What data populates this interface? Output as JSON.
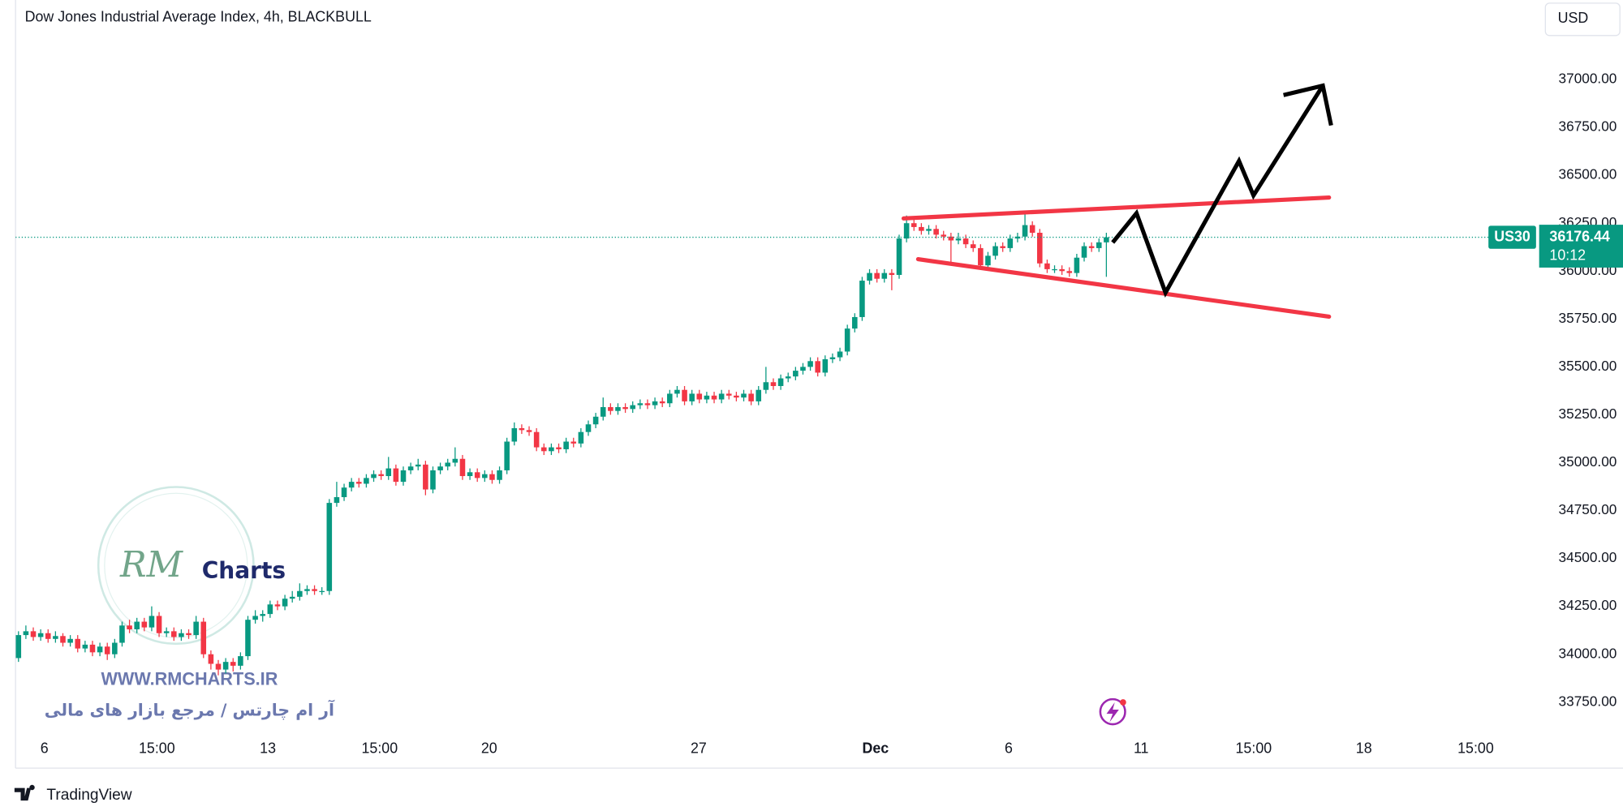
{
  "chart_data": {
    "type": "candlestick",
    "title": "Dow Jones Industrial Average Index, 4h, BLACKBULL",
    "currency": "USD",
    "symbol": "US30",
    "last_price": 36176.44,
    "countdown": "10:12",
    "up_color": "#089981",
    "down_color": "#f23645",
    "grid": false,
    "xlim": [
      -0.4,
      205.2
    ],
    "xticks": [
      {
        "value": 3.5,
        "label": "6"
      },
      {
        "value": 18.7,
        "label": "15:00"
      },
      {
        "value": 33.7,
        "label": "13"
      },
      {
        "value": 48.8,
        "label": "15:00"
      },
      {
        "value": 63.6,
        "label": "20"
      },
      {
        "value": 91.9,
        "label": "27"
      },
      {
        "value": 115.8,
        "label": "Dec"
      },
      {
        "value": 133.8,
        "label": "6"
      },
      {
        "value": 151.7,
        "label": "11"
      },
      {
        "value": 166.9,
        "label": "15:00"
      },
      {
        "value": 181.8,
        "label": "18"
      },
      {
        "value": 196.9,
        "label": "15:00"
      }
    ],
    "ylim": [
      33580,
      37415
    ],
    "yticks": [
      {
        "value": 33750,
        "label": "33750.00"
      },
      {
        "value": 34000,
        "label": "34000.00"
      },
      {
        "value": 34250,
        "label": "34250.00"
      },
      {
        "value": 34500,
        "label": "34500.00"
      },
      {
        "value": 34750,
        "label": "34750.00"
      },
      {
        "value": 35000,
        "label": "35000.00"
      },
      {
        "value": 35250,
        "label": "35250.00"
      },
      {
        "value": 35500,
        "label": "35500.00"
      },
      {
        "value": 35750,
        "label": "35750.00"
      },
      {
        "value": 36000,
        "label": "36000.00"
      },
      {
        "value": 36250,
        "label": "36250.00"
      },
      {
        "value": 36500,
        "label": "36500.00"
      },
      {
        "value": 36750,
        "label": "36750.00"
      },
      {
        "value": 37000,
        "label": "37000.00"
      }
    ],
    "ohlc": [
      [
        33980,
        34120,
        33960,
        34100
      ],
      [
        34100,
        34150,
        34080,
        34120
      ],
      [
        34120,
        34140,
        34070,
        34090
      ],
      [
        34090,
        34130,
        34070,
        34110
      ],
      [
        34110,
        34130,
        34060,
        34080
      ],
      [
        34080,
        34120,
        34060,
        34095
      ],
      [
        34095,
        34110,
        34040,
        34060
      ],
      [
        34060,
        34100,
        34040,
        34080
      ],
      [
        34080,
        34100,
        34010,
        34030
      ],
      [
        34030,
        34070,
        34010,
        34050
      ],
      [
        34050,
        34070,
        33990,
        34010
      ],
      [
        34010,
        34060,
        33990,
        34040
      ],
      [
        34040,
        34060,
        33970,
        34000
      ],
      [
        34000,
        34080,
        33980,
        34060
      ],
      [
        34060,
        34170,
        34040,
        34150
      ],
      [
        34150,
        34180,
        34110,
        34130
      ],
      [
        34130,
        34190,
        34110,
        34170
      ],
      [
        34170,
        34190,
        34120,
        34140
      ],
      [
        34140,
        34250,
        34120,
        34200
      ],
      [
        34200,
        34220,
        34090,
        34110
      ],
      [
        34110,
        34140,
        34090,
        34120
      ],
      [
        34120,
        34140,
        34070,
        34090
      ],
      [
        34090,
        34130,
        34070,
        34110
      ],
      [
        34110,
        34130,
        34080,
        34100
      ],
      [
        34100,
        34200,
        34080,
        34170
      ],
      [
        34170,
        34190,
        33980,
        34000
      ],
      [
        34000,
        34020,
        33920,
        33950
      ],
      [
        33950,
        33970,
        33890,
        33920
      ],
      [
        33920,
        33980,
        33900,
        33960
      ],
      [
        33960,
        33980,
        33910,
        33940
      ],
      [
        33940,
        34010,
        33920,
        33990
      ],
      [
        33990,
        34200,
        33970,
        34180
      ],
      [
        34180,
        34230,
        34160,
        34200
      ],
      [
        34200,
        34230,
        34170,
        34210
      ],
      [
        34210,
        34280,
        34190,
        34260
      ],
      [
        34260,
        34280,
        34230,
        34250
      ],
      [
        34250,
        34310,
        34230,
        34290
      ],
      [
        34290,
        34330,
        34270,
        34300
      ],
      [
        34300,
        34370,
        34280,
        34330
      ],
      [
        34330,
        34360,
        34310,
        34340
      ],
      [
        34340,
        34360,
        34310,
        34330
      ],
      [
        34330,
        34350,
        34310,
        34330
      ],
      [
        34330,
        34810,
        34310,
        34790
      ],
      [
        34790,
        34900,
        34770,
        34820
      ],
      [
        34820,
        34890,
        34800,
        34870
      ],
      [
        34870,
        34920,
        34850,
        34900
      ],
      [
        34900,
        34920,
        34870,
        34890
      ],
      [
        34890,
        34940,
        34870,
        34920
      ],
      [
        34920,
        34960,
        34900,
        34940
      ],
      [
        34940,
        34960,
        34910,
        34930
      ],
      [
        34930,
        35030,
        34910,
        34970
      ],
      [
        34970,
        34990,
        34880,
        34900
      ],
      [
        34900,
        34980,
        34880,
        34960
      ],
      [
        34960,
        35000,
        34940,
        34980
      ],
      [
        34980,
        35020,
        34960,
        34990
      ],
      [
        34990,
        35010,
        34830,
        34860
      ],
      [
        34860,
        34980,
        34840,
        34960
      ],
      [
        34960,
        35000,
        34940,
        34980
      ],
      [
        34980,
        35020,
        34960,
        35000
      ],
      [
        35000,
        35080,
        34980,
        35020
      ],
      [
        35020,
        35040,
        34910,
        34930
      ],
      [
        34930,
        34970,
        34910,
        34950
      ],
      [
        34950,
        34970,
        34900,
        34920
      ],
      [
        34920,
        34960,
        34900,
        34940
      ],
      [
        34940,
        34960,
        34890,
        34910
      ],
      [
        34910,
        34980,
        34890,
        34960
      ],
      [
        34960,
        35130,
        34940,
        35110
      ],
      [
        35110,
        35210,
        35090,
        35180
      ],
      [
        35180,
        35200,
        35150,
        35170
      ],
      [
        35170,
        35190,
        35140,
        35160
      ],
      [
        35160,
        35180,
        35060,
        35080
      ],
      [
        35080,
        35100,
        35040,
        35060
      ],
      [
        35060,
        35100,
        35040,
        35080
      ],
      [
        35080,
        35100,
        35050,
        35070
      ],
      [
        35070,
        35130,
        35050,
        35110
      ],
      [
        35110,
        35130,
        35080,
        35100
      ],
      [
        35100,
        35180,
        35080,
        35160
      ],
      [
        35160,
        35220,
        35140,
        35200
      ],
      [
        35200,
        35260,
        35180,
        35240
      ],
      [
        35240,
        35340,
        35220,
        35290
      ],
      [
        35290,
        35310,
        35250,
        35270
      ],
      [
        35270,
        35310,
        35250,
        35290
      ],
      [
        35290,
        35310,
        35260,
        35280
      ],
      [
        35280,
        35320,
        35260,
        35300
      ],
      [
        35300,
        35330,
        35280,
        35310
      ],
      [
        35310,
        35330,
        35280,
        35300
      ],
      [
        35300,
        35340,
        35280,
        35320
      ],
      [
        35320,
        35340,
        35290,
        35310
      ],
      [
        35310,
        35380,
        35290,
        35360
      ],
      [
        35360,
        35400,
        35340,
        35380
      ],
      [
        35380,
        35400,
        35300,
        35320
      ],
      [
        35320,
        35380,
        35300,
        35360
      ],
      [
        35360,
        35380,
        35310,
        35330
      ],
      [
        35330,
        35370,
        35310,
        35350
      ],
      [
        35350,
        35370,
        35310,
        35330
      ],
      [
        35330,
        35380,
        35310,
        35360
      ],
      [
        35360,
        35380,
        35330,
        35350
      ],
      [
        35350,
        35370,
        35320,
        35340
      ],
      [
        35340,
        35380,
        35320,
        35360
      ],
      [
        35360,
        35380,
        35300,
        35320
      ],
      [
        35320,
        35400,
        35300,
        35380
      ],
      [
        35380,
        35500,
        35360,
        35420
      ],
      [
        35420,
        35440,
        35380,
        35400
      ],
      [
        35400,
        35460,
        35380,
        35440
      ],
      [
        35440,
        35470,
        35420,
        35450
      ],
      [
        35450,
        35500,
        35430,
        35480
      ],
      [
        35480,
        35520,
        35460,
        35500
      ],
      [
        35500,
        35550,
        35480,
        35530
      ],
      [
        35530,
        35550,
        35450,
        35470
      ],
      [
        35470,
        35560,
        35450,
        35540
      ],
      [
        35540,
        35570,
        35520,
        35550
      ],
      [
        35550,
        35600,
        35530,
        35580
      ],
      [
        35580,
        35720,
        35560,
        35700
      ],
      [
        35700,
        35780,
        35680,
        35760
      ],
      [
        35760,
        35970,
        35740,
        35950
      ],
      [
        35950,
        36010,
        35930,
        35990
      ],
      [
        35990,
        36010,
        35940,
        35960
      ],
      [
        35960,
        36010,
        35940,
        35990
      ],
      [
        35990,
        36010,
        35900,
        35980
      ],
      [
        35980,
        36190,
        35960,
        36170
      ],
      [
        36170,
        36290,
        36150,
        36250
      ],
      [
        36250,
        36270,
        36210,
        36230
      ],
      [
        36230,
        36250,
        36190,
        36210
      ],
      [
        36210,
        36240,
        36190,
        36220
      ],
      [
        36220,
        36240,
        36170,
        36190
      ],
      [
        36190,
        36210,
        36160,
        36180
      ],
      [
        36180,
        36200,
        36030,
        36160
      ],
      [
        36160,
        36200,
        36140,
        36170
      ],
      [
        36170,
        36190,
        36120,
        36140
      ],
      [
        36140,
        36160,
        36100,
        36120
      ],
      [
        36120,
        36140,
        36010,
        36030
      ],
      [
        36030,
        36100,
        36010,
        36080
      ],
      [
        36080,
        36150,
        36060,
        36130
      ],
      [
        36130,
        36150,
        36100,
        36120
      ],
      [
        36120,
        36190,
        36100,
        36170
      ],
      [
        36170,
        36200,
        36150,
        36180
      ],
      [
        36180,
        36300,
        36160,
        36240
      ],
      [
        36240,
        36260,
        36180,
        36200
      ],
      [
        36200,
        36220,
        36020,
        36040
      ],
      [
        36040,
        36060,
        35990,
        36010
      ],
      [
        36010,
        36030,
        35990,
        36010
      ],
      [
        36010,
        36030,
        35980,
        36000
      ],
      [
        36000,
        36020,
        35970,
        35990
      ],
      [
        35990,
        36090,
        35970,
        36070
      ],
      [
        36070,
        36150,
        36050,
        36130
      ],
      [
        36130,
        36150,
        36100,
        36120
      ],
      [
        36120,
        36170,
        36100,
        36150
      ],
      [
        36150,
        36200,
        35970,
        36176.44
      ]
    ]
  },
  "watermark": {
    "initials": "RM",
    "logo": "Charts",
    "site": "WWW.RMCHARTS.IR",
    "tagline": "آر ام چارتس / مرجع بازار های مالی"
  },
  "branding": "TradingView"
}
